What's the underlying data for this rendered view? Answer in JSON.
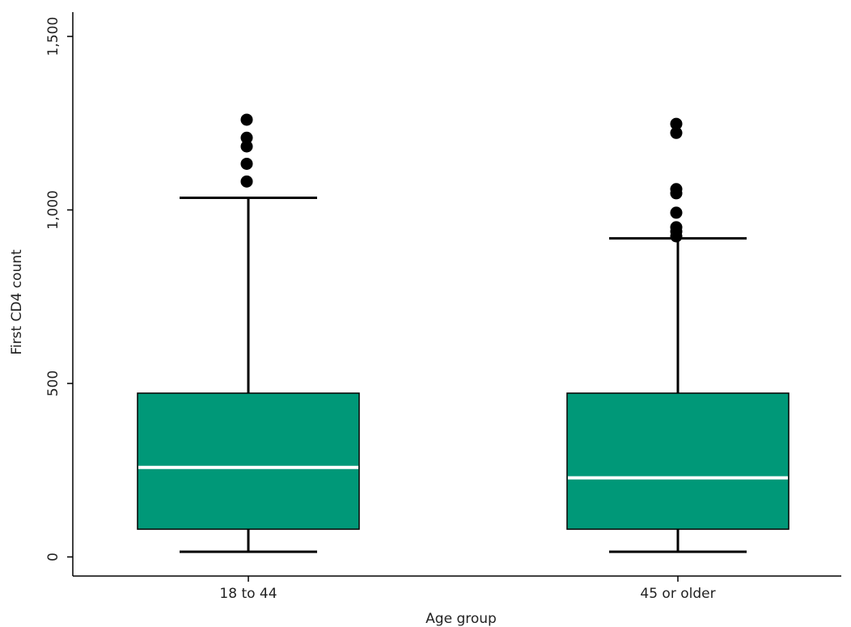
{
  "chart_data": {
    "type": "boxplot",
    "xlabel": "Age group",
    "ylabel": "First CD4 count",
    "ylim": [
      -55,
      1570
    ],
    "yticks": [
      0,
      500,
      1000,
      1500
    ],
    "ytick_labels": [
      "0",
      "500",
      "1,000",
      "1,500"
    ],
    "box_color": "#009878",
    "median_color": "#ffffff",
    "categories": [
      "18 to 44",
      "45 or older"
    ],
    "groups": [
      {
        "category": "18 to 44",
        "whisker_low": 15,
        "q1": 80,
        "median": 258,
        "q3": 472,
        "whisker_high": 1035,
        "outliers": [
          1082,
          1133,
          1183,
          1208,
          1260
        ]
      },
      {
        "category": "45 or older",
        "whisker_low": 15,
        "q1": 80,
        "median": 228,
        "q3": 472,
        "whisker_high": 918,
        "outliers": [
          924,
          938,
          950,
          992,
          1048,
          1060,
          1222,
          1248
        ]
      }
    ]
  }
}
